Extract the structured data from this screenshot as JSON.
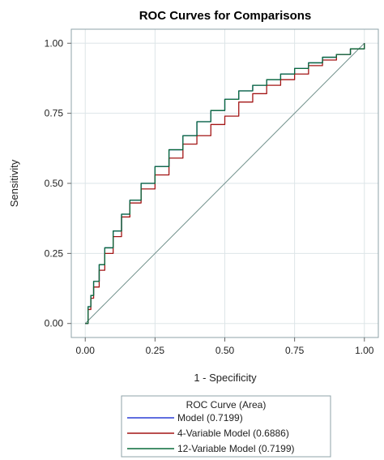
{
  "chart_data": {
    "type": "line",
    "title": "ROC Curves for Comparisons",
    "xlabel": "1 - Specificity",
    "ylabel": "Sensitivity",
    "xlim": [
      -0.05,
      1.05
    ],
    "ylim": [
      -0.05,
      1.05
    ],
    "x_ticks": [
      "0.00",
      "0.25",
      "0.50",
      "0.75",
      "1.00"
    ],
    "y_ticks": [
      "0.00",
      "0.25",
      "0.50",
      "0.75",
      "1.00"
    ],
    "grid": true,
    "legend": {
      "title": "ROC Curve (Area)",
      "position": "bottom"
    },
    "series": [
      {
        "name": "Model (0.7199)",
        "color": "#2b3fd6",
        "x": [
          0,
          0.01,
          0.02,
          0.03,
          0.05,
          0.07,
          0.1,
          0.13,
          0.16,
          0.2,
          0.25,
          0.3,
          0.35,
          0.4,
          0.45,
          0.5,
          0.55,
          0.6,
          0.65,
          0.7,
          0.75,
          0.8,
          0.85,
          0.9,
          0.95,
          1.0
        ],
        "y": [
          0,
          0.06,
          0.1,
          0.15,
          0.21,
          0.27,
          0.33,
          0.39,
          0.44,
          0.5,
          0.56,
          0.62,
          0.67,
          0.72,
          0.76,
          0.8,
          0.83,
          0.85,
          0.87,
          0.89,
          0.91,
          0.93,
          0.95,
          0.96,
          0.98,
          1.0
        ]
      },
      {
        "name": "4-Variable Model  (0.6886)",
        "color": "#a31515",
        "x": [
          0,
          0.01,
          0.02,
          0.03,
          0.05,
          0.07,
          0.1,
          0.13,
          0.16,
          0.2,
          0.25,
          0.3,
          0.35,
          0.4,
          0.45,
          0.5,
          0.55,
          0.6,
          0.65,
          0.7,
          0.75,
          0.8,
          0.85,
          0.9,
          0.95,
          1.0
        ],
        "y": [
          0,
          0.05,
          0.09,
          0.13,
          0.19,
          0.25,
          0.31,
          0.38,
          0.43,
          0.48,
          0.53,
          0.59,
          0.64,
          0.67,
          0.71,
          0.74,
          0.79,
          0.82,
          0.85,
          0.87,
          0.89,
          0.92,
          0.94,
          0.96,
          0.98,
          1.0
        ]
      },
      {
        "name": "12-Variable Model  (0.7199)",
        "color": "#0a6b3a",
        "x": [
          0,
          0.01,
          0.02,
          0.03,
          0.05,
          0.07,
          0.1,
          0.13,
          0.16,
          0.2,
          0.25,
          0.3,
          0.35,
          0.4,
          0.45,
          0.5,
          0.55,
          0.6,
          0.65,
          0.7,
          0.75,
          0.8,
          0.85,
          0.9,
          0.95,
          1.0
        ],
        "y": [
          0,
          0.06,
          0.1,
          0.15,
          0.21,
          0.27,
          0.33,
          0.39,
          0.44,
          0.5,
          0.56,
          0.62,
          0.67,
          0.72,
          0.76,
          0.8,
          0.83,
          0.85,
          0.87,
          0.89,
          0.91,
          0.93,
          0.95,
          0.96,
          0.98,
          1.0
        ]
      }
    ],
    "reference_line": {
      "color": "#6f8f8a",
      "x": [
        0,
        1
      ],
      "y": [
        0,
        1
      ]
    }
  }
}
